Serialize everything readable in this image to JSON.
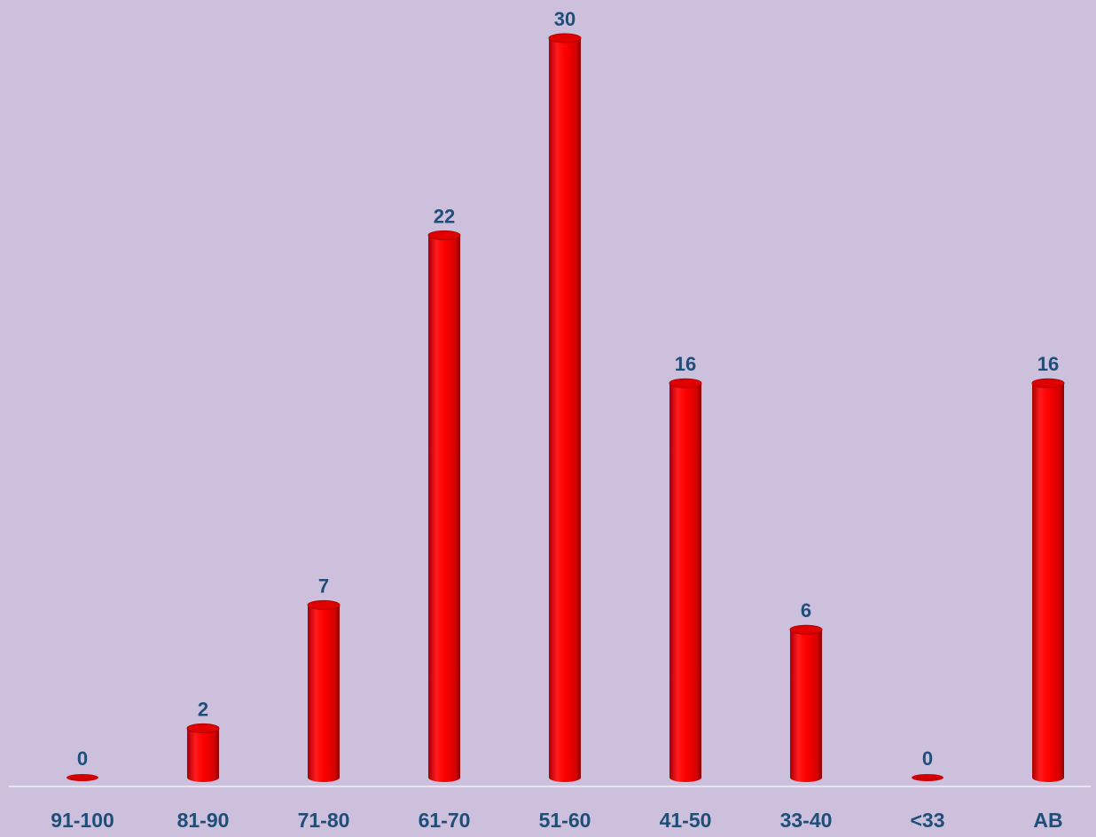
{
  "chart_data": {
    "type": "bar",
    "categories": [
      "91-100",
      "81-90",
      "71-80",
      "61-70",
      "51-60",
      "41-50",
      "33-40",
      "<33",
      "AB"
    ],
    "values": [
      0,
      2,
      7,
      22,
      30,
      16,
      6,
      0,
      16
    ],
    "value_labels": [
      "0",
      "2",
      "7",
      "22",
      "30",
      "16",
      "6",
      "0",
      "16"
    ],
    "title": "",
    "xlabel": "",
    "ylabel": "",
    "ylim": [
      0,
      30
    ],
    "grid": false,
    "legend": "none",
    "bar_style": "3d-cylinder",
    "colors": {
      "background": "#ccc0dd",
      "bar": "#ff0000",
      "bar_dark": "#b30000",
      "label": "#1f4e79",
      "axis": "#e6e6f2"
    }
  }
}
